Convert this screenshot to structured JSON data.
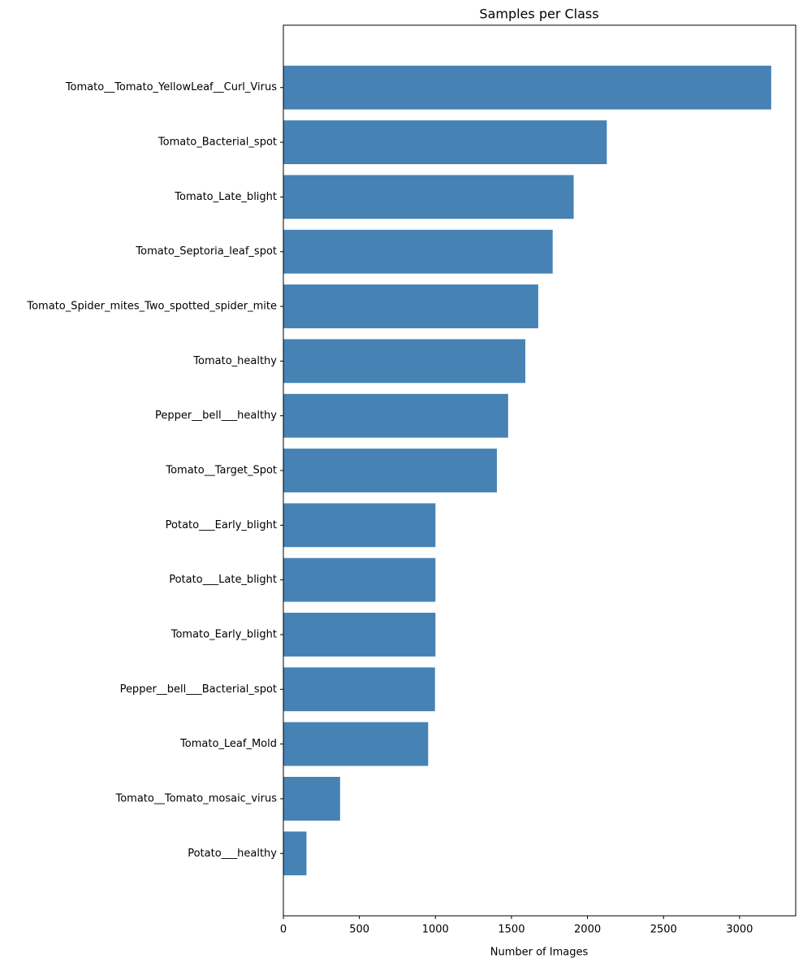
{
  "chart_data": {
    "type": "bar",
    "orientation": "horizontal",
    "title": "Samples per Class",
    "x_label": "Number of Images",
    "categories": [
      "Tomato__Tomato_YellowLeaf__Curl_Virus",
      "Tomato_Bacterial_spot",
      "Tomato_Late_blight",
      "Tomato_Septoria_leaf_spot",
      "Tomato_Spider_mites_Two_spotted_spider_mite",
      "Tomato_healthy",
      "Pepper__bell___healthy",
      "Tomato__Target_Spot",
      "Potato___Early_blight",
      "Potato___Late_blight",
      "Tomato_Early_blight",
      "Pepper__bell___Bacterial_spot",
      "Tomato_Leaf_Mold",
      "Tomato__Tomato_mosaic_virus",
      "Potato___healthy"
    ],
    "values": [
      3208,
      2127,
      1909,
      1771,
      1676,
      1591,
      1478,
      1404,
      1000,
      1000,
      1000,
      997,
      952,
      373,
      152
    ],
    "color": "#4682b4",
    "xlim": [
      0,
      3369
    ],
    "xticks": [
      0,
      500,
      1000,
      1500,
      2000,
      2500,
      3000
    ],
    "grid": false
  }
}
